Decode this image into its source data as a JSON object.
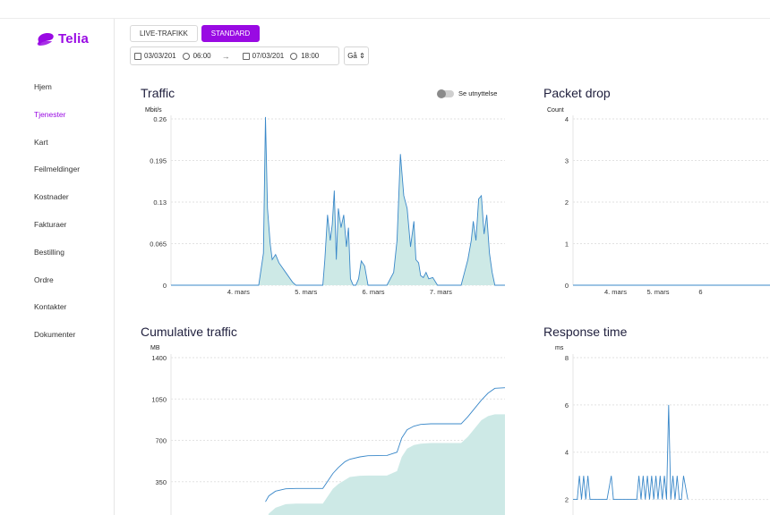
{
  "brand": {
    "name": "Telia",
    "color": "#990ae3"
  },
  "nav": {
    "items": [
      {
        "label": "Hjem",
        "active": false
      },
      {
        "label": "Tjenester",
        "active": true
      },
      {
        "label": "Kart",
        "active": false
      },
      {
        "label": "Feilmeldinger",
        "active": false
      },
      {
        "label": "Kostnader",
        "active": false
      },
      {
        "label": "Fakturaer",
        "active": false
      },
      {
        "label": "Bestilling",
        "active": false
      },
      {
        "label": "Ordre",
        "active": false
      },
      {
        "label": "Kontakter",
        "active": false
      },
      {
        "label": "Dokumenter",
        "active": false
      }
    ]
  },
  "toolbar": {
    "live_label": "LIVE-TRAFIKK",
    "standard_label": "STANDARD",
    "start_date": "03/03/201",
    "start_time": "06:00",
    "end_date": "07/03/201",
    "end_time": "18:00",
    "go_label": "Gå",
    "range_arrow": "→"
  },
  "panels": {
    "traffic": {
      "title": "Traffic",
      "unit": "Mbit/s",
      "toggle_label": "Se utnyttelse"
    },
    "packet_drop": {
      "title": "Packet drop",
      "unit": "Count"
    },
    "cumulative": {
      "title": "Cumulative traffic",
      "unit": "MB"
    },
    "response": {
      "title": "Response time",
      "unit": "ms"
    }
  },
  "chart_data": [
    {
      "id": "traffic",
      "type": "area",
      "title": "Traffic",
      "ylabel": "Mbit/s",
      "yticks": [
        "0",
        "0.065",
        "0.13",
        "0.195",
        "0.26"
      ],
      "ylim": [
        0,
        0.26
      ],
      "xlim": [
        3.0,
        7.95
      ],
      "xticks": [
        {
          "x": 4,
          "label": "4. mars"
        },
        {
          "x": 5,
          "label": "5. mars"
        },
        {
          "x": 6,
          "label": "6. mars"
        },
        {
          "x": 7,
          "label": "7. mars"
        }
      ],
      "line_color": "#3a88c9",
      "fill_color": "#cde9e6",
      "x": [
        3.0,
        4.0,
        4.3,
        4.37,
        4.4,
        4.43,
        4.47,
        4.5,
        4.55,
        4.6,
        4.7,
        4.8,
        4.85,
        5.25,
        5.28,
        5.32,
        5.36,
        5.39,
        5.42,
        5.45,
        5.48,
        5.52,
        5.56,
        5.6,
        5.63,
        5.66,
        5.7,
        5.74,
        5.78,
        5.82,
        5.87,
        5.92,
        6.0,
        6.2,
        6.3,
        6.35,
        6.4,
        6.45,
        6.5,
        6.55,
        6.6,
        6.63,
        6.67,
        6.7,
        6.74,
        6.78,
        6.82,
        6.88,
        6.95,
        7.0,
        7.3,
        7.35,
        7.4,
        7.45,
        7.48,
        7.52,
        7.56,
        7.6,
        7.64,
        7.68,
        7.72,
        7.76,
        7.8,
        7.95
      ],
      "y": [
        0,
        0,
        0,
        0.05,
        0.263,
        0.12,
        0.065,
        0.04,
        0.048,
        0.035,
        0.02,
        0.005,
        0,
        0,
        0.04,
        0.11,
        0.07,
        0.095,
        0.148,
        0.04,
        0.12,
        0.09,
        0.11,
        0.06,
        0.09,
        0.01,
        0,
        0,
        0.01,
        0.038,
        0.03,
        0,
        0,
        0,
        0.02,
        0.07,
        0.205,
        0.14,
        0.12,
        0.06,
        0.1,
        0.04,
        0.035,
        0.015,
        0.012,
        0.02,
        0.01,
        0.012,
        0,
        0,
        0,
        0.02,
        0.04,
        0.07,
        0.1,
        0.07,
        0.135,
        0.14,
        0.08,
        0.11,
        0.05,
        0.02,
        0,
        0
      ]
    },
    {
      "id": "packet_drop",
      "type": "line",
      "title": "Packet drop",
      "ylabel": "Count",
      "yticks": [
        "0",
        "1",
        "2",
        "3",
        "4"
      ],
      "ylim": [
        0,
        4
      ],
      "xlim": [
        3.0,
        7.95
      ],
      "xticks": [
        {
          "x": 4,
          "label": "4. mars"
        },
        {
          "x": 5,
          "label": "5. mars"
        },
        {
          "x": 6,
          "label": "6"
        }
      ],
      "line_color": "#3a88c9",
      "x": [
        3.0,
        7.95
      ],
      "y": [
        0,
        0
      ]
    },
    {
      "id": "cumulative",
      "type": "area",
      "title": "Cumulative traffic",
      "ylabel": "MB",
      "yticks": [
        "350",
        "700",
        "1050",
        "1400"
      ],
      "ylim": [
        0,
        1400
      ],
      "xlim": [
        3.0,
        7.95
      ],
      "line_color": "#3a88c9",
      "fill_color": "#cde9e6",
      "fill_x": [
        4.4,
        4.45,
        4.55,
        4.7,
        4.85,
        5.25,
        5.4,
        5.48,
        5.58,
        5.65,
        5.8,
        5.92,
        6.2,
        6.35,
        6.42,
        6.5,
        6.6,
        6.7,
        6.85,
        7.3,
        7.4,
        7.5,
        7.6,
        7.7,
        7.8,
        7.95
      ],
      "fill_y": [
        0,
        80,
        130,
        160,
        165,
        165,
        290,
        330,
        365,
        390,
        400,
        402,
        402,
        440,
        560,
        630,
        660,
        672,
        677,
        677,
        730,
        800,
        870,
        905,
        920,
        920
      ],
      "x": [
        4.4,
        4.45,
        4.55,
        4.7,
        4.85,
        5.25,
        5.4,
        5.48,
        5.58,
        5.65,
        5.8,
        5.92,
        6.2,
        6.35,
        6.42,
        6.5,
        6.6,
        6.7,
        6.85,
        7.3,
        7.4,
        7.5,
        7.6,
        7.7,
        7.8,
        7.95
      ],
      "y": [
        180,
        230,
        270,
        290,
        293,
        293,
        420,
        470,
        520,
        540,
        560,
        570,
        572,
        600,
        720,
        790,
        820,
        835,
        840,
        840,
        900,
        970,
        1040,
        1100,
        1140,
        1145
      ]
    },
    {
      "id": "response",
      "type": "line",
      "title": "Response time",
      "ylabel": "ms",
      "yticks": [
        "2",
        "4",
        "6",
        "8"
      ],
      "ylim": [
        1,
        8
      ],
      "xlim": [
        3.0,
        7.95
      ],
      "line_color": "#3a88c9",
      "x": [
        3.0,
        3.1,
        3.15,
        3.2,
        3.25,
        3.3,
        3.35,
        3.4,
        3.45,
        3.6,
        3.8,
        3.9,
        3.95,
        4.0,
        4.2,
        4.5,
        4.55,
        4.6,
        4.65,
        4.7,
        4.75,
        4.8,
        4.85,
        4.9,
        4.95,
        5.0,
        5.05,
        5.1,
        5.15,
        5.2,
        5.25,
        5.3,
        5.35,
        5.4,
        5.45,
        5.5,
        5.55,
        5.6,
        5.7
      ],
      "y": [
        2,
        2,
        3,
        2,
        3,
        2,
        3,
        2,
        2,
        2,
        2,
        3,
        2,
        2,
        2,
        2,
        3,
        2,
        3,
        2,
        3,
        2,
        3,
        2,
        3,
        2,
        3,
        2,
        3,
        2,
        6,
        2,
        3,
        2,
        3,
        2,
        2,
        3,
        2
      ]
    }
  ]
}
